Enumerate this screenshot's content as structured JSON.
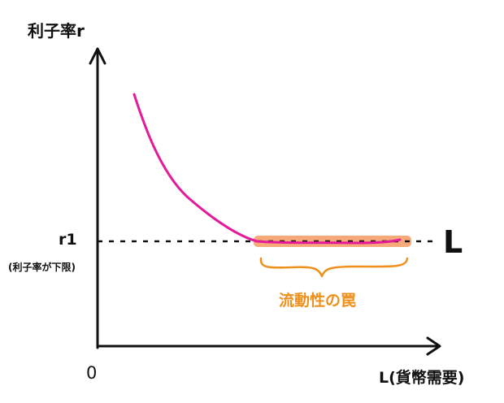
{
  "axes": {
    "y_title": "利子率r",
    "x_title": "L(貨幣需要)",
    "origin": "0"
  },
  "rate_floor": {
    "label": "r1",
    "note": "(利子率が下限)"
  },
  "curve": {
    "label": "L"
  },
  "liquidity_trap": {
    "label": "流動性の罠"
  },
  "colors": {
    "axis": "#111111",
    "curve": "#e31b9a",
    "highlight": "#f5a16b",
    "brace": "#f0901c",
    "trap_text": "#f0901c"
  }
}
